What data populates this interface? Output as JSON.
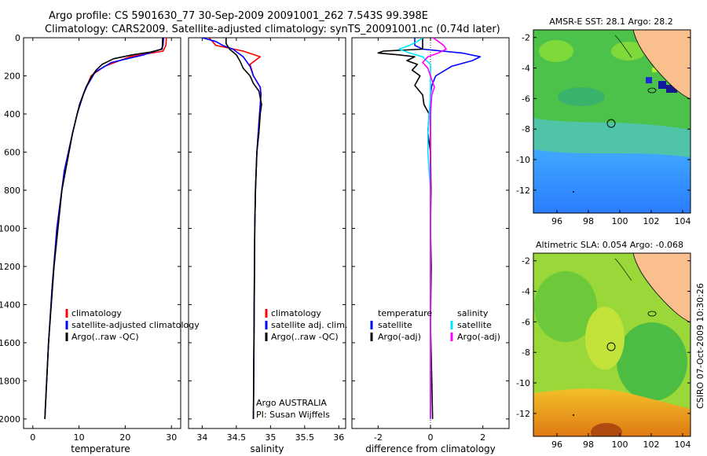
{
  "title": {
    "line1": "Argo profile: CS 5901630_77 30-Sep-2009 20091001_262 7.543S 99.398E",
    "line2": "Climatology: CARS2009. Satellite-adjusted climatology: synTS_20091001.nc (0.74d later)"
  },
  "side_label": "CSIRO 07-Oct-2009 10:30:26",
  "colors": {
    "climatology": "#ff0000",
    "satellite": "#0000ff",
    "argo": "#000000",
    "salinity_satellite": "#00e5ff",
    "salinity_argo": "#ff00ff",
    "land": "#f9c08e"
  },
  "chart_data": [
    {
      "id": "temperature",
      "type": "line",
      "xlabel": "temperature",
      "ylabel": "",
      "xlim": [
        -2,
        32
      ],
      "ylim": [
        2050,
        0
      ],
      "xticks": [
        0,
        10,
        20,
        30
      ],
      "yticks": [
        0,
        200,
        400,
        600,
        800,
        1000,
        1200,
        1400,
        1600,
        1800,
        2000
      ],
      "legend": [
        "climatology",
        "satellite-adjusted climatology",
        "Argo(..raw -QC)"
      ],
      "series": [
        {
          "name": "climatology",
          "color": "red",
          "depth": [
            0,
            40,
            70,
            100,
            150,
            200,
            300,
            400,
            500,
            700,
            1000,
            1300,
            1600,
            2000
          ],
          "values": [
            28.9,
            28.8,
            28.2,
            21.0,
            15.5,
            12.6,
            10.9,
            9.6,
            8.6,
            6.8,
            5.2,
            4.2,
            3.4,
            2.6
          ]
        },
        {
          "name": "satellite-adjusted climatology",
          "color": "blue",
          "depth": [
            0,
            40,
            60,
            90,
            130,
            180,
            250,
            300,
            400,
            500,
            700,
            1000,
            1300,
            1600,
            2000
          ],
          "values": [
            28.3,
            28.2,
            27.8,
            24.0,
            17.0,
            13.5,
            11.8,
            10.9,
            9.6,
            8.6,
            6.8,
            5.2,
            4.2,
            3.4,
            2.6
          ]
        },
        {
          "name": "Argo(..raw -QC)",
          "color": "black",
          "depth": [
            0,
            60,
            75,
            90,
            110,
            140,
            170,
            200,
            260,
            350,
            500,
            800,
            1200,
            1600,
            1950,
            2000
          ],
          "values": [
            28.1,
            28.0,
            25.5,
            21.5,
            17.5,
            15.0,
            13.7,
            12.8,
            11.5,
            10.1,
            8.6,
            6.3,
            4.6,
            3.4,
            2.7,
            2.6
          ]
        }
      ]
    },
    {
      "id": "salinity",
      "type": "line",
      "xlabel": "salinity",
      "ylabel": "",
      "xlim": [
        33.8,
        36.1
      ],
      "ylim": [
        2050,
        0
      ],
      "xticks": [
        34,
        34.5,
        35,
        35.5,
        36
      ],
      "yticks": [
        0,
        200,
        400,
        600,
        800,
        1000,
        1200,
        1400,
        1600,
        1800,
        2000
      ],
      "legend": [
        "climatology",
        "satellite adj. clim.",
        "Argo(..raw -QC)"
      ],
      "annotation": [
        "Argo AUSTRALIA",
        "PI: Susan Wijffels"
      ],
      "series": [
        {
          "name": "climatology",
          "color": "red",
          "depth": [
            0,
            40,
            70,
            100,
            140,
            200,
            260,
            300,
            400,
            600,
            800,
            1000,
            1500,
            2000
          ],
          "values": [
            34.1,
            34.2,
            34.6,
            34.85,
            34.7,
            34.75,
            34.85,
            34.86,
            34.84,
            34.8,
            34.78,
            34.77,
            34.76,
            34.75
          ]
        },
        {
          "name": "satellite adj. clim.",
          "color": "blue",
          "depth": [
            0,
            20,
            40,
            60,
            100,
            150,
            200,
            260,
            300,
            400,
            600,
            800,
            1000,
            1500,
            2000
          ],
          "values": [
            34.0,
            34.2,
            34.3,
            34.45,
            34.6,
            34.7,
            34.75,
            34.85,
            34.86,
            34.84,
            34.8,
            34.78,
            34.77,
            34.76,
            34.75
          ]
        },
        {
          "name": "Argo(..raw -QC)",
          "color": "black",
          "depth": [
            0,
            30,
            60,
            90,
            120,
            160,
            200,
            240,
            280,
            350,
            400,
            500,
            600,
            800,
            1000,
            1400,
            2000
          ],
          "values": [
            34.35,
            34.35,
            34.4,
            34.5,
            34.55,
            34.6,
            34.7,
            34.75,
            34.83,
            34.87,
            34.85,
            34.83,
            34.8,
            34.78,
            34.77,
            34.76,
            34.75
          ]
        }
      ]
    },
    {
      "id": "difference",
      "type": "line",
      "xlabel": "difference from climatology",
      "ylabel": "",
      "xlim": [
        -3,
        3
      ],
      "ylim": [
        2050,
        0
      ],
      "xticks": [
        -2,
        0,
        2
      ],
      "yticks": [
        0,
        200,
        400,
        600,
        800,
        1000,
        1200,
        1400,
        1600,
        1800,
        2000
      ],
      "legend_temperature": {
        "header": "temperature",
        "items": [
          "satellite",
          "Argo(-adj)"
        ]
      },
      "legend_salinity": {
        "header": "salinity",
        "items": [
          "satellite",
          "Argo(-adj)"
        ]
      },
      "series": [
        {
          "name": "temperature satellite",
          "color": "blue",
          "depth": [
            0,
            40,
            60,
            80,
            100,
            120,
            150,
            200,
            250,
            300,
            400,
            600,
            1000,
            1500,
            2000
          ],
          "values": [
            -0.6,
            -0.6,
            -0.3,
            1.2,
            1.9,
            1.6,
            0.8,
            0.2,
            0.05,
            0.0,
            0.0,
            0.0,
            0.0,
            0.0,
            0.0
          ]
        },
        {
          "name": "temperature Argo(-adj)",
          "color": "black",
          "depth": [
            0,
            60,
            70,
            80,
            90,
            100,
            120,
            140,
            170,
            200,
            250,
            300,
            350,
            400,
            500,
            600,
            800,
            1000,
            1200,
            1500,
            1800,
            2000
          ],
          "values": [
            -0.3,
            -0.3,
            -1.8,
            -2.0,
            -1.2,
            -0.6,
            -0.9,
            -0.5,
            -0.7,
            -0.4,
            -0.6,
            -0.3,
            -0.25,
            -0.05,
            -0.1,
            0.0,
            0.02,
            0.0,
            0.03,
            0.0,
            0.05,
            0.08
          ]
        },
        {
          "name": "salinity satellite",
          "color": "cyan",
          "depth": [
            0,
            20,
            40,
            60,
            80,
            100,
            140,
            200,
            300,
            400,
            500,
            600,
            700,
            800,
            1000,
            1500,
            2000
          ],
          "values": [
            -0.3,
            -0.5,
            -0.8,
            -1.2,
            -0.8,
            -0.3,
            0.0,
            0.0,
            0.0,
            -0.05,
            -0.1,
            -0.1,
            -0.05,
            0.0,
            0.0,
            0.0,
            0.0
          ]
        },
        {
          "name": "salinity Argo(-adj)",
          "color": "magenta",
          "depth": [
            0,
            20,
            40,
            60,
            80,
            100,
            130,
            160,
            200,
            260,
            300,
            400,
            500,
            700,
            1000,
            1500,
            2000
          ],
          "values": [
            0.1,
            0.3,
            0.5,
            0.6,
            0.3,
            -0.1,
            -0.3,
            -0.1,
            0.0,
            0.15,
            0.05,
            0.0,
            0.0,
            0.0,
            0.0,
            0.0,
            0.0
          ]
        }
      ]
    },
    {
      "id": "sst_map",
      "type": "heatmap",
      "title": "AMSR-E SST: 28.1  Argo: 28.2",
      "xticks": [
        96,
        98,
        100,
        102,
        104
      ],
      "yticks": [
        -2,
        -4,
        -6,
        -8,
        -10,
        -12
      ],
      "xlim": [
        94.5,
        104.5
      ],
      "ylim": [
        -13.5,
        -1.5
      ],
      "argo_position": {
        "lon": 99.398,
        "lat": -7.543
      }
    },
    {
      "id": "sla_map",
      "type": "heatmap",
      "title": "Altimetric SLA: 0.054  Argo: -0.068",
      "xticks": [
        96,
        98,
        100,
        102,
        104
      ],
      "yticks": [
        -2,
        -4,
        -6,
        -8,
        -10,
        -12
      ],
      "xlim": [
        94.5,
        104.5
      ],
      "ylim": [
        -13.5,
        -1.5
      ],
      "argo_position": {
        "lon": 99.398,
        "lat": -7.543
      }
    }
  ]
}
